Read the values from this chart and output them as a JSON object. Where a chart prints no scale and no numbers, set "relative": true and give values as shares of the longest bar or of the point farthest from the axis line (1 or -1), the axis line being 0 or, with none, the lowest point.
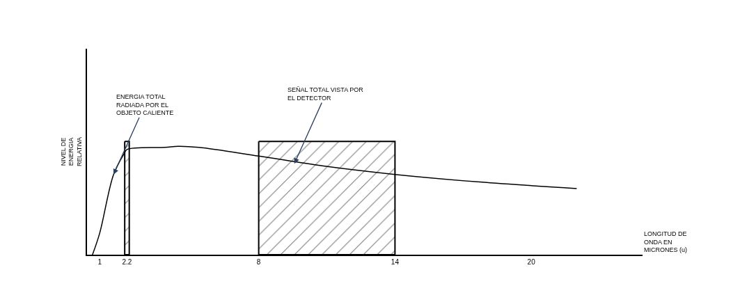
{
  "chart_data": {
    "type": "line",
    "relative": true,
    "xlabel": "LONGITUD DE\nONDA EN\nMICRONES (u)",
    "ylabel": "NIVEL DE\nENERGIA\nRELATIVA",
    "x": [
      0.68,
      1,
      1.61,
      2.07,
      2.2,
      3.88,
      4.47,
      5.36,
      8,
      10.79,
      14,
      17.74,
      22
    ],
    "series": [
      {
        "color": "#000000",
        "values": [
          0,
          0.2,
          0.74,
          0.93,
          0.97,
          0.99,
          1,
          0.99,
          0.91,
          0.82,
          0.74,
          0.67,
          0.61
        ]
      }
    ],
    "xlim": [
      0.44,
      24.9
    ],
    "xticks": [
      1,
      2.2,
      8,
      14,
      20
    ],
    "bands": [
      {
        "axis": "x",
        "from": 2.1,
        "to": 2.3,
        "color": "#000000"
      },
      {
        "axis": "x",
        "from": 8,
        "to": 14,
        "color": "#000000"
      }
    ],
    "annotations": [
      {
        "text": "ENERGIA TOTAL\nRADIADA POR EL\nOBJETO CALIENTE",
        "x": 1.61,
        "y": 0.74
      },
      {
        "text": "SEÑAL TOTAL VISTA POR\nEL DETECTOR",
        "x": 9.57,
        "y": 0.84
      }
    ],
    "marker": "none",
    "line_style": "solid"
  }
}
